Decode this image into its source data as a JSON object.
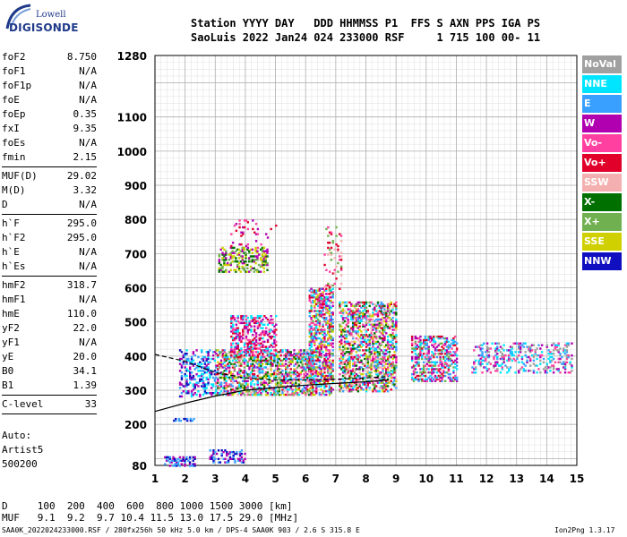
{
  "logo": {
    "top": "Lowell",
    "bottom": "DIGISONDE"
  },
  "header": {
    "line1": "Station YYYY DAY   DDD HHMMSS P1  FFS S AXN PPS IGA PS",
    "line2": "SaoLuis 2022 Jan24 024 233000 RSF     1 715 100 00- 11"
  },
  "params": [
    {
      "name": "foF2",
      "value": "8.750"
    },
    {
      "name": "foF1",
      "value": "N/A"
    },
    {
      "name": "foF1p",
      "value": "N/A"
    },
    {
      "name": "foE",
      "value": "N/A"
    },
    {
      "name": "foEp",
      "value": "0.35"
    },
    {
      "name": "fxI",
      "value": "9.35"
    },
    {
      "name": "foEs",
      "value": "N/A"
    },
    {
      "name": "fmin",
      "value": "2.15"
    },
    {
      "sep": true
    },
    {
      "name": "MUF(D)",
      "value": "29.02"
    },
    {
      "name": "M(D)",
      "value": "3.32"
    },
    {
      "name": "D",
      "value": "N/A"
    },
    {
      "sep": true
    },
    {
      "name": "h`F",
      "value": "295.0"
    },
    {
      "name": "h`F2",
      "value": "295.0"
    },
    {
      "name": "h`E",
      "value": "N/A"
    },
    {
      "name": "h`Es",
      "value": "N/A"
    },
    {
      "sep": true
    },
    {
      "name": "hmF2",
      "value": "318.7"
    },
    {
      "name": "hmF1",
      "value": "N/A"
    },
    {
      "name": "hmE",
      "value": "110.0"
    },
    {
      "name": "yF2",
      "value": "22.0"
    },
    {
      "name": "yF1",
      "value": "N/A"
    },
    {
      "name": "yE",
      "value": "20.0"
    },
    {
      "name": "B0",
      "value": "34.1"
    },
    {
      "name": "B1",
      "value": "1.39"
    },
    {
      "sep": true
    },
    {
      "name": "C-level",
      "value": "33"
    },
    {
      "sep": true
    }
  ],
  "auto": [
    "Auto:",
    "Artist5",
    "500200"
  ],
  "legend": [
    {
      "label": "NoVal",
      "color": "#a0a0a0"
    },
    {
      "label": "NNE",
      "color": "#00e5ff"
    },
    {
      "label": "E",
      "color": "#3aa0ff"
    },
    {
      "label": "W",
      "color": "#b000b0"
    },
    {
      "label": "Vo-",
      "color": "#ff40a0"
    },
    {
      "label": "Vo+",
      "color": "#e0002a"
    },
    {
      "label": "SSW",
      "color": "#f4b0b0"
    },
    {
      "label": "X-",
      "color": "#007000"
    },
    {
      "label": "X+",
      "color": "#70b050"
    },
    {
      "label": "SSE",
      "color": "#d0d000"
    },
    {
      "label": "NNW",
      "color": "#1010c0"
    }
  ],
  "muf_table": {
    "line1": "D     100  200  400  600  800 1000 1500 3000 [km]",
    "line2": "MUF   9.1  9.2  9.7 10.4 11.5 13.0 17.5 29.0 [MHz]"
  },
  "footer": {
    "left": "SAA0K_2022024233000.RSF / 280fx256h 50 kHz 5.0 km / DPS-4 SAA0K 903 / 2.6 S 315.8 E",
    "right": "Ion2Png 1.3.17"
  },
  "chart_data": {
    "type": "scatter",
    "x_ticks": [
      1,
      2,
      3,
      4,
      5,
      6,
      7,
      8,
      9,
      10,
      11,
      12,
      13,
      14,
      15
    ],
    "xlim": [
      1,
      15
    ],
    "y_ticks": [
      80,
      200,
      300,
      400,
      500,
      600,
      700,
      800,
      900,
      1000,
      1100,
      1280
    ],
    "ylim": [
      80,
      1280
    ],
    "grid": true,
    "series": [
      {
        "name": "NoVal",
        "color": "#a0a0a0"
      },
      {
        "name": "NNE",
        "color": "#00e5ff"
      },
      {
        "name": "E",
        "color": "#3aa0ff"
      },
      {
        "name": "W",
        "color": "#b000b0"
      },
      {
        "name": "Vo-",
        "color": "#ff40a0"
      },
      {
        "name": "Vo+",
        "color": "#e0002a"
      },
      {
        "name": "SSW",
        "color": "#f4b0b0"
      },
      {
        "name": "X-",
        "color": "#007000"
      },
      {
        "name": "X+",
        "color": "#70b050"
      },
      {
        "name": "SSE",
        "color": "#d0d000"
      },
      {
        "name": "NNW",
        "color": "#1010c0"
      }
    ],
    "clusters": [
      {
        "fmin": 1.3,
        "fmax": 2.3,
        "hmin": 82,
        "hmax": 110,
        "density": 0.5,
        "colors": [
          "#1010c0",
          "#3aa0ff",
          "#b000b0"
        ]
      },
      {
        "fmin": 1.6,
        "fmax": 2.3,
        "hmin": 214,
        "hmax": 220,
        "density": 0.5,
        "colors": [
          "#1010c0",
          "#3aa0ff"
        ]
      },
      {
        "fmin": 1.8,
        "fmax": 3.0,
        "hmin": 285,
        "hmax": 420,
        "density": 0.35,
        "colors": [
          "#1010c0",
          "#3aa0ff",
          "#00e5ff",
          "#b000b0"
        ]
      },
      {
        "fmin": 2.8,
        "fmax": 4.0,
        "hmin": 92,
        "hmax": 128,
        "density": 0.3,
        "colors": [
          "#b000b0",
          "#1010c0",
          "#3aa0ff"
        ]
      },
      {
        "fmin": 3.0,
        "fmax": 6.2,
        "hmin": 290,
        "hmax": 420,
        "density": 0.55,
        "colors": [
          "#ff40a0",
          "#e0002a",
          "#b000b0",
          "#d0d000",
          "#70b050",
          "#007000",
          "#f4b0b0",
          "#00e5ff",
          "#3aa0ff"
        ]
      },
      {
        "fmin": 3.5,
        "fmax": 5.0,
        "hmin": 400,
        "hmax": 520,
        "density": 0.4,
        "colors": [
          "#b000b0",
          "#ff40a0",
          "#e0002a",
          "#00e5ff"
        ]
      },
      {
        "fmin": 3.1,
        "fmax": 4.7,
        "hmin": 650,
        "hmax": 720,
        "density": 0.4,
        "colors": [
          "#70b050",
          "#007000",
          "#d0d000",
          "#b000b0"
        ]
      },
      {
        "fmin": 3.5,
        "fmax": 5.0,
        "hmin": 720,
        "hmax": 800,
        "density": 0.08,
        "colors": [
          "#b000b0",
          "#ff40a0",
          "#e0002a"
        ]
      },
      {
        "fmin": 6.1,
        "fmax": 6.9,
        "hmin": 290,
        "hmax": 600,
        "density": 0.55,
        "colors": [
          "#ff40a0",
          "#e0002a",
          "#b000b0",
          "#d0d000",
          "#70b050",
          "#3aa0ff",
          "#00e5ff"
        ]
      },
      {
        "fmin": 6.6,
        "fmax": 7.2,
        "hmin": 600,
        "hmax": 780,
        "density": 0.2,
        "colors": [
          "#ff40a0",
          "#f4b0b0",
          "#e0002a",
          "#70b050"
        ]
      },
      {
        "fmin": 7.1,
        "fmax": 9.0,
        "hmin": 300,
        "hmax": 560,
        "density": 0.5,
        "colors": [
          "#ff40a0",
          "#e0002a",
          "#b000b0",
          "#d0d000",
          "#70b050",
          "#007000",
          "#3aa0ff",
          "#00e5ff",
          "#f4b0b0"
        ]
      },
      {
        "fmin": 9.5,
        "fmax": 11.0,
        "hmin": 330,
        "hmax": 460,
        "density": 0.45,
        "colors": [
          "#ff40a0",
          "#e0002a",
          "#b000b0",
          "#00e5ff",
          "#3aa0ff",
          "#70b050"
        ]
      },
      {
        "fmin": 11.5,
        "fmax": 14.8,
        "hmin": 355,
        "hmax": 440,
        "density": 0.3,
        "colors": [
          "#00e5ff",
          "#3aa0ff",
          "#b000b0",
          "#ff40a0",
          "#a0a0a0"
        ]
      }
    ],
    "trace_lines": [
      {
        "name": "profile",
        "color": "#000000",
        "points": [
          [
            1.0,
            238
          ],
          [
            2.0,
            262
          ],
          [
            3.0,
            283
          ],
          [
            4.0,
            300
          ],
          [
            5.0,
            308
          ],
          [
            6.0,
            315
          ],
          [
            7.0,
            320
          ],
          [
            8.0,
            325
          ],
          [
            8.75,
            330
          ]
        ]
      },
      {
        "name": "virtual-height",
        "color": "#000000",
        "dashed": true,
        "points": [
          [
            1.0,
            405
          ],
          [
            2.0,
            385
          ],
          [
            3.0,
            352
          ],
          [
            4.0,
            336
          ],
          [
            5.0,
            330
          ],
          [
            6.0,
            330
          ],
          [
            7.0,
            332
          ],
          [
            8.0,
            336
          ],
          [
            8.75,
            340
          ]
        ]
      }
    ]
  }
}
